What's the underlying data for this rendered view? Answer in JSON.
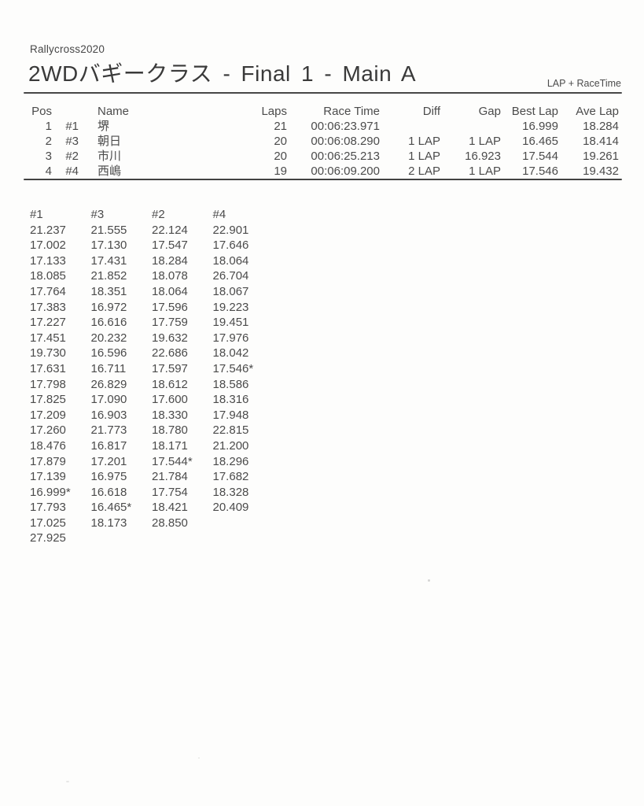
{
  "header": {
    "event": "Rallycross2020",
    "title": "2WDバギークラス - Final 1 - Main A",
    "mode_label": "LAP + RaceTime"
  },
  "results": {
    "headers": {
      "pos": "Pos",
      "car": "",
      "name": "Name",
      "laps": "Laps",
      "race_time": "Race Time",
      "diff": "Diff",
      "gap": "Gap",
      "best_lap": "Best Lap",
      "ave_lap": "Ave Lap"
    },
    "rows": [
      {
        "pos": "1",
        "car": "#1",
        "name": "堺",
        "laps": "21",
        "race_time": "00:06:23.971",
        "diff": "",
        "gap": "",
        "best_lap": "16.999",
        "ave_lap": "18.284"
      },
      {
        "pos": "2",
        "car": "#3",
        "name": "朝日",
        "laps": "20",
        "race_time": "00:06:08.290",
        "diff": "1 LAP",
        "gap": "1 LAP",
        "best_lap": "16.465",
        "ave_lap": "18.414"
      },
      {
        "pos": "3",
        "car": "#2",
        "name": "市川",
        "laps": "20",
        "race_time": "00:06:25.213",
        "diff": "1 LAP",
        "gap": "16.923",
        "best_lap": "17.544",
        "ave_lap": "19.261"
      },
      {
        "pos": "4",
        "car": "#4",
        "name": "西嶋",
        "laps": "19",
        "race_time": "00:06:09.200",
        "diff": "2 LAP",
        "gap": "1 LAP",
        "best_lap": "17.546",
        "ave_lap": "19.432"
      }
    ]
  },
  "lap_times": {
    "columns": [
      {
        "car": "#1",
        "laps": [
          "21.237",
          "17.002",
          "17.133",
          "18.085",
          "17.764",
          "17.383",
          "17.227",
          "17.451",
          "19.730",
          "17.631",
          "17.798",
          "17.825",
          "17.209",
          "17.260",
          "18.476",
          "17.879",
          "17.139",
          "16.999*",
          "17.793",
          "17.025",
          "27.925"
        ]
      },
      {
        "car": "#3",
        "laps": [
          "21.555",
          "17.130",
          "17.431",
          "21.852",
          "18.351",
          "16.972",
          "16.616",
          "20.232",
          "16.596",
          "16.711",
          "26.829",
          "17.090",
          "16.903",
          "21.773",
          "16.817",
          "17.201",
          "16.975",
          "16.618",
          "16.465*",
          "18.173"
        ]
      },
      {
        "car": "#2",
        "laps": [
          "22.124",
          "17.547",
          "18.284",
          "18.078",
          "18.064",
          "17.596",
          "17.759",
          "19.632",
          "22.686",
          "17.597",
          "18.612",
          "17.600",
          "18.330",
          "18.780",
          "18.171",
          "17.544*",
          "21.784",
          "17.754",
          "18.421",
          "28.850"
        ]
      },
      {
        "car": "#4",
        "laps": [
          "22.901",
          "17.646",
          "18.064",
          "26.704",
          "18.067",
          "19.223",
          "19.451",
          "17.976",
          "18.042",
          "17.546*",
          "18.586",
          "18.316",
          "17.948",
          "22.815",
          "21.200",
          "18.296",
          "17.682",
          "18.328",
          "20.409"
        ]
      }
    ]
  }
}
